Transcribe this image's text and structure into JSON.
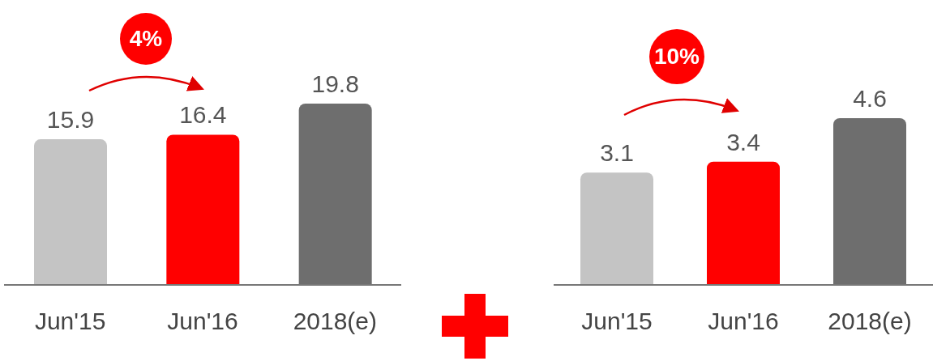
{
  "chart_data": [
    {
      "type": "bar",
      "categories": [
        "Jun'15",
        "Jun'16",
        "2018(e)"
      ],
      "values": [
        15.9,
        16.4,
        19.8
      ],
      "colors": [
        "#c4c4c4",
        "#ff0000",
        "#6e6e6e"
      ],
      "data_labels": true,
      "annotations": [
        "4%"
      ]
    },
    {
      "type": "bar",
      "categories": [
        "Jun'15",
        "Jun'16",
        "2018(e)"
      ],
      "values": [
        3.1,
        3.4,
        4.6
      ],
      "colors": [
        "#c4c4c4",
        "#ff0000",
        "#6e6e6e"
      ],
      "data_labels": true,
      "annotations": [
        "10%"
      ]
    }
  ]
}
